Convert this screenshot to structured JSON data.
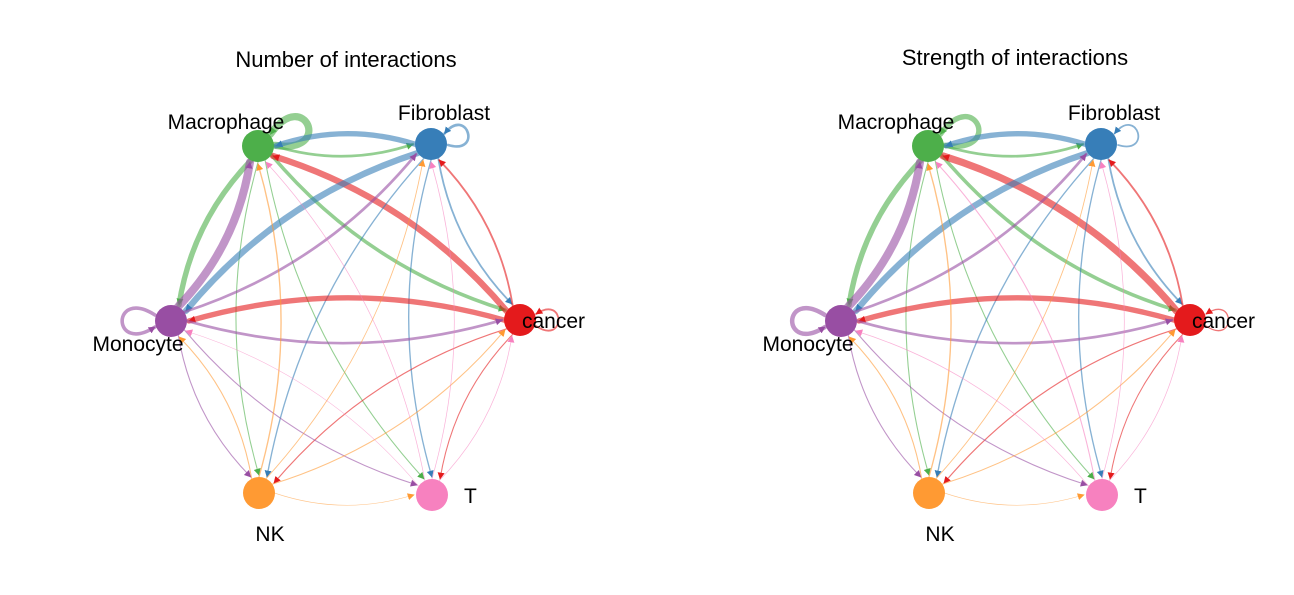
{
  "nodes": [
    {
      "id": "macrophage",
      "label": "Macrophage",
      "color": "#4DAF4A"
    },
    {
      "id": "fibroblast",
      "label": "Fibroblast",
      "color": "#377EB8"
    },
    {
      "id": "cancer",
      "label": "cancer",
      "color": "#E41A1C"
    },
    {
      "id": "t",
      "label": "T",
      "color": "#F781BF"
    },
    {
      "id": "nk",
      "label": "NK",
      "color": "#FF9A33"
    },
    {
      "id": "monocyte",
      "label": "Monocyte",
      "color": "#984EA3"
    }
  ],
  "panels": [
    {
      "id": "number",
      "title": "Number of interactions",
      "edges": [
        {
          "source": "macrophage",
          "target": "macrophage",
          "weight": 8
        },
        {
          "source": "fibroblast",
          "target": "fibroblast",
          "weight": 3
        },
        {
          "source": "cancer",
          "target": "cancer",
          "weight": 2
        },
        {
          "source": "monocyte",
          "target": "monocyte",
          "weight": 4
        },
        {
          "source": "macrophage",
          "target": "fibroblast",
          "weight": 3
        },
        {
          "source": "fibroblast",
          "target": "macrophage",
          "weight": 6
        },
        {
          "source": "macrophage",
          "target": "cancer",
          "weight": 4
        },
        {
          "source": "cancer",
          "target": "macrophage",
          "weight": 7
        },
        {
          "source": "macrophage",
          "target": "monocyte",
          "weight": 6
        },
        {
          "source": "monocyte",
          "target": "macrophage",
          "weight": 9
        },
        {
          "source": "macrophage",
          "target": "nk",
          "weight": 1.2
        },
        {
          "source": "macrophage",
          "target": "t",
          "weight": 1.2
        },
        {
          "source": "fibroblast",
          "target": "cancer",
          "weight": 2
        },
        {
          "source": "cancer",
          "target": "fibroblast",
          "weight": 2
        },
        {
          "source": "fibroblast",
          "target": "monocyte",
          "weight": 7
        },
        {
          "source": "monocyte",
          "target": "fibroblast",
          "weight": 3
        },
        {
          "source": "fibroblast",
          "target": "nk",
          "weight": 1.5
        },
        {
          "source": "fibroblast",
          "target": "t",
          "weight": 1.5
        },
        {
          "source": "cancer",
          "target": "monocyte",
          "weight": 6
        },
        {
          "source": "monocyte",
          "target": "cancer",
          "weight": 3
        },
        {
          "source": "cancer",
          "target": "nk",
          "weight": 1.3
        },
        {
          "source": "cancer",
          "target": "t",
          "weight": 1.2
        },
        {
          "source": "monocyte",
          "target": "nk",
          "weight": 1.2
        },
        {
          "source": "monocyte",
          "target": "t",
          "weight": 1.2
        },
        {
          "source": "nk",
          "target": "macrophage",
          "weight": 1.5
        },
        {
          "source": "nk",
          "target": "fibroblast",
          "weight": 1
        },
        {
          "source": "nk",
          "target": "cancer",
          "weight": 1.2
        },
        {
          "source": "nk",
          "target": "monocyte",
          "weight": 1.2
        },
        {
          "source": "t",
          "target": "macrophage",
          "weight": 0.8
        },
        {
          "source": "t",
          "target": "fibroblast",
          "weight": 0.8
        },
        {
          "source": "t",
          "target": "cancer",
          "weight": 0.8
        },
        {
          "source": "t",
          "target": "monocyte",
          "weight": 0.6
        },
        {
          "source": "nk",
          "target": "t",
          "weight": 0.6
        }
      ]
    },
    {
      "id": "strength",
      "title": "Strength of interactions",
      "edges": [
        {
          "source": "macrophage",
          "target": "macrophage",
          "weight": 6
        },
        {
          "source": "fibroblast",
          "target": "fibroblast",
          "weight": 2
        },
        {
          "source": "cancer",
          "target": "cancer",
          "weight": 1.5
        },
        {
          "source": "monocyte",
          "target": "monocyte",
          "weight": 5
        },
        {
          "source": "macrophage",
          "target": "fibroblast",
          "weight": 3
        },
        {
          "source": "fibroblast",
          "target": "macrophage",
          "weight": 6
        },
        {
          "source": "macrophage",
          "target": "cancer",
          "weight": 4
        },
        {
          "source": "cancer",
          "target": "macrophage",
          "weight": 8
        },
        {
          "source": "macrophage",
          "target": "monocyte",
          "weight": 6
        },
        {
          "source": "monocyte",
          "target": "macrophage",
          "weight": 9
        },
        {
          "source": "macrophage",
          "target": "nk",
          "weight": 1.2
        },
        {
          "source": "macrophage",
          "target": "t",
          "weight": 1.2
        },
        {
          "source": "fibroblast",
          "target": "cancer",
          "weight": 2
        },
        {
          "source": "cancer",
          "target": "fibroblast",
          "weight": 2
        },
        {
          "source": "fibroblast",
          "target": "monocyte",
          "weight": 7
        },
        {
          "source": "monocyte",
          "target": "fibroblast",
          "weight": 3
        },
        {
          "source": "fibroblast",
          "target": "nk",
          "weight": 1.5
        },
        {
          "source": "fibroblast",
          "target": "t",
          "weight": 1.5
        },
        {
          "source": "cancer",
          "target": "monocyte",
          "weight": 6
        },
        {
          "source": "monocyte",
          "target": "cancer",
          "weight": 3
        },
        {
          "source": "cancer",
          "target": "nk",
          "weight": 1.3
        },
        {
          "source": "cancer",
          "target": "t",
          "weight": 1.2
        },
        {
          "source": "monocyte",
          "target": "nk",
          "weight": 1.2
        },
        {
          "source": "monocyte",
          "target": "t",
          "weight": 1.2
        },
        {
          "source": "nk",
          "target": "macrophage",
          "weight": 1.5
        },
        {
          "source": "nk",
          "target": "fibroblast",
          "weight": 1
        },
        {
          "source": "nk",
          "target": "cancer",
          "weight": 1.2
        },
        {
          "source": "nk",
          "target": "monocyte",
          "weight": 1.2
        },
        {
          "source": "t",
          "target": "macrophage",
          "weight": 1.2
        },
        {
          "source": "t",
          "target": "fibroblast",
          "weight": 0.8
        },
        {
          "source": "t",
          "target": "cancer",
          "weight": 0.8
        },
        {
          "source": "t",
          "target": "monocyte",
          "weight": 0.8
        },
        {
          "source": "nk",
          "target": "t",
          "weight": 0.6
        }
      ]
    }
  ]
}
